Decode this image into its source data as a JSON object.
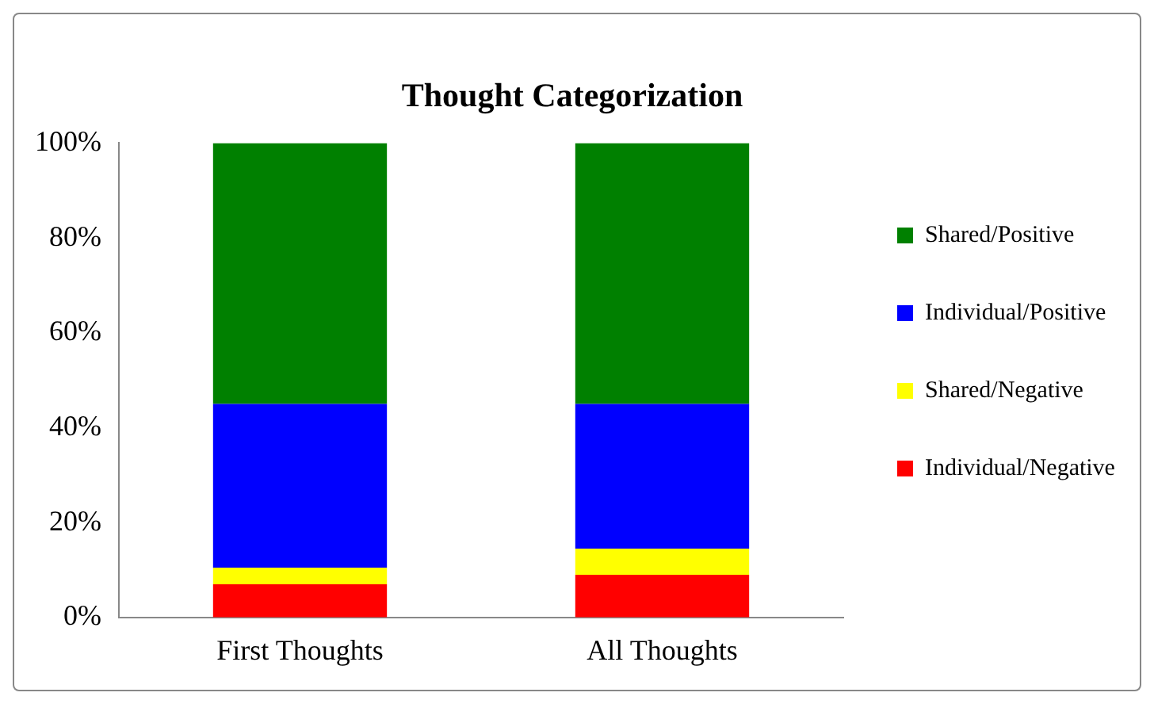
{
  "chart_data": {
    "type": "bar",
    "title": "Thought Categorization",
    "categories": [
      "First Thoughts",
      "All Thoughts"
    ],
    "stacked": true,
    "series": [
      {
        "name": "Individual/Negative",
        "color": "#ff0000",
        "values": [
          7,
          9
        ]
      },
      {
        "name": "Shared/Negative",
        "color": "#ffff00",
        "values": [
          3.5,
          5.5
        ]
      },
      {
        "name": "Individual/Positive",
        "color": "#0000ff",
        "values": [
          34.5,
          30.5
        ]
      },
      {
        "name": "Shared/Positive",
        "color": "#008000",
        "values": [
          55,
          55
        ]
      }
    ],
    "ylim": [
      0,
      100
    ],
    "yticks": [
      {
        "value": 0,
        "label": "0%"
      },
      {
        "value": 20,
        "label": "20%"
      },
      {
        "value": 40,
        "label": "40%"
      },
      {
        "value": 60,
        "label": "60%"
      },
      {
        "value": 80,
        "label": "80%"
      },
      {
        "value": 100,
        "label": "100%"
      }
    ],
    "grid": false,
    "legend": "right"
  }
}
